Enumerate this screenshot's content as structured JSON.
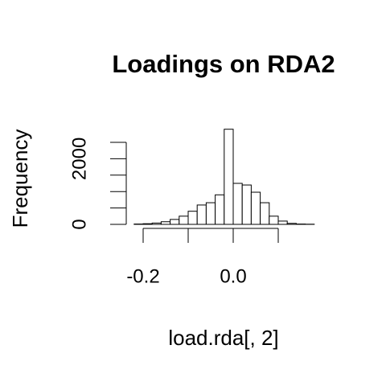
{
  "chart_data": {
    "type": "histogram",
    "title": "Loadings on RDA2",
    "xlabel": "load.rda[, 2]",
    "ylabel": "Frequency",
    "bins": [
      -0.22,
      -0.2,
      -0.18,
      -0.16,
      -0.14,
      -0.12,
      -0.1,
      -0.08,
      -0.06,
      -0.04,
      -0.02,
      0,
      0.02,
      0.04,
      0.06,
      0.08,
      0.1,
      0.12,
      0.14,
      0.16,
      0.18
    ],
    "values": [
      10,
      20,
      40,
      80,
      150,
      250,
      400,
      590,
      660,
      900,
      2900,
      1250,
      1200,
      980,
      660,
      250,
      100,
      30,
      10,
      5
    ],
    "color": "#ffffff",
    "xlim": [
      -0.24,
      0.2
    ],
    "xticks": [
      -0.2,
      {
        "value": -0.1,
        "label": null
      },
      {
        "value": 0,
        "label": "0.0"
      },
      {
        "value": 0.1,
        "label": null
      }
    ],
    "ylim": [
      0,
      2900
    ],
    "yticks": [
      0,
      {
        "value": 500,
        "label": null
      },
      {
        "value": 1000,
        "label": null
      },
      {
        "value": 1500,
        "label": null
      },
      2000,
      {
        "value": 2500,
        "label": null
      }
    ],
    "grid": false
  }
}
